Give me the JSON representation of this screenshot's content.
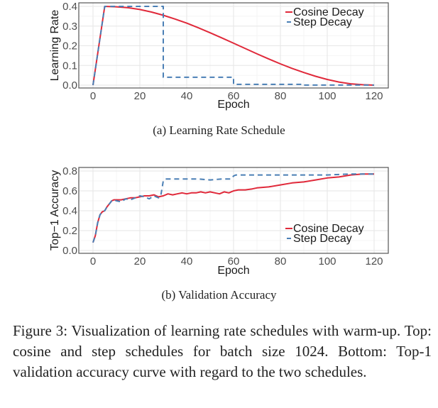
{
  "chart_data": [
    {
      "type": "line",
      "title": "",
      "subcaption": "(a) Learning Rate Schedule",
      "xlabel": "Epoch",
      "ylabel": "Learning Rate",
      "xlim": [
        0,
        120
      ],
      "ylim": [
        0.0,
        0.4
      ],
      "xticks": [
        "0",
        "20",
        "40",
        "60",
        "80",
        "100",
        "120"
      ],
      "xtick_values": [
        0,
        20,
        40,
        60,
        80,
        100,
        120
      ],
      "yticks": [
        "0.0",
        "0.1",
        "0.2",
        "0.3",
        "0.4"
      ],
      "ytick_values": [
        0.0,
        0.1,
        0.2,
        0.3,
        0.4
      ],
      "grid": true,
      "legend": "top-right",
      "series": [
        {
          "name": "Cosine Decay",
          "color": "#e0293a",
          "style": "solid",
          "x": [
            0,
            5,
            10,
            15,
            20,
            25,
            30,
            35,
            40,
            45,
            50,
            55,
            60,
            65,
            70,
            75,
            80,
            85,
            90,
            95,
            100,
            105,
            110,
            115,
            120
          ],
          "y": [
            0.0,
            0.4,
            0.398,
            0.393,
            0.384,
            0.371,
            0.355,
            0.336,
            0.315,
            0.291,
            0.266,
            0.24,
            0.213,
            0.186,
            0.159,
            0.133,
            0.108,
            0.085,
            0.064,
            0.045,
            0.029,
            0.016,
            0.007,
            0.002,
            0.0
          ]
        },
        {
          "name": "Step Decay",
          "color": "#4a7fb5",
          "style": "dashed",
          "x": [
            0,
            5,
            30,
            30,
            60,
            60,
            90,
            90,
            120
          ],
          "y": [
            0.0,
            0.4,
            0.4,
            0.04,
            0.04,
            0.004,
            0.004,
            0.0004,
            0.0004
          ]
        }
      ]
    },
    {
      "type": "line",
      "title": "",
      "subcaption": "(b) Validation Accuracy",
      "xlabel": "Epoch",
      "ylabel": "Top−1 Accuracy",
      "xlim": [
        0,
        120
      ],
      "ylim": [
        0.0,
        0.8
      ],
      "xticks": [
        "0",
        "20",
        "40",
        "60",
        "80",
        "100",
        "120"
      ],
      "xtick_values": [
        0,
        20,
        40,
        60,
        80,
        100,
        120
      ],
      "yticks": [
        "0.0",
        "0.2",
        "0.4",
        "0.6",
        "0.8"
      ],
      "ytick_values": [
        0.0,
        0.2,
        0.4,
        0.6,
        0.8
      ],
      "grid": true,
      "legend": "bottom-right",
      "series": [
        {
          "name": "Cosine Decay",
          "color": "#e0293a",
          "style": "solid",
          "x": [
            0,
            1,
            2,
            3,
            4,
            5,
            6,
            7,
            8,
            9,
            10,
            12,
            14,
            16,
            18,
            20,
            22,
            24,
            26,
            28,
            30,
            32,
            34,
            36,
            38,
            40,
            42,
            44,
            46,
            48,
            50,
            52,
            54,
            56,
            58,
            60,
            62,
            65,
            68,
            70,
            75,
            80,
            85,
            90,
            95,
            100,
            105,
            110,
            115,
            120
          ],
          "y": [
            0.08,
            0.15,
            0.28,
            0.36,
            0.39,
            0.4,
            0.44,
            0.47,
            0.5,
            0.51,
            0.51,
            0.51,
            0.52,
            0.53,
            0.53,
            0.54,
            0.55,
            0.55,
            0.56,
            0.54,
            0.55,
            0.57,
            0.56,
            0.57,
            0.58,
            0.57,
            0.58,
            0.58,
            0.59,
            0.58,
            0.59,
            0.58,
            0.57,
            0.59,
            0.58,
            0.6,
            0.61,
            0.61,
            0.62,
            0.63,
            0.64,
            0.66,
            0.68,
            0.69,
            0.71,
            0.73,
            0.74,
            0.76,
            0.77,
            0.77
          ]
        },
        {
          "name": "Step Decay",
          "color": "#4a7fb5",
          "style": "dashed",
          "x": [
            0,
            1,
            2,
            3,
            4,
            5,
            6,
            7,
            8,
            9,
            10,
            12,
            14,
            16,
            18,
            20,
            22,
            24,
            26,
            28,
            29,
            30,
            31,
            35,
            40,
            45,
            50,
            55,
            59,
            60,
            61,
            70,
            80,
            90,
            100,
            110,
            115,
            120
          ],
          "y": [
            0.08,
            0.15,
            0.28,
            0.36,
            0.39,
            0.4,
            0.44,
            0.47,
            0.5,
            0.51,
            0.5,
            0.49,
            0.52,
            0.51,
            0.53,
            0.55,
            0.54,
            0.52,
            0.55,
            0.53,
            0.56,
            0.7,
            0.72,
            0.72,
            0.72,
            0.72,
            0.71,
            0.72,
            0.72,
            0.75,
            0.76,
            0.76,
            0.76,
            0.76,
            0.76,
            0.77,
            0.77,
            0.77
          ]
        }
      ]
    }
  ],
  "figure_caption": "Figure 3:  Visualization of learning rate schedules with warm-up.  Top: cosine and step schedules for batch size 1024. Bottom: Top-1 validation accuracy curve with regard to the two schedules."
}
